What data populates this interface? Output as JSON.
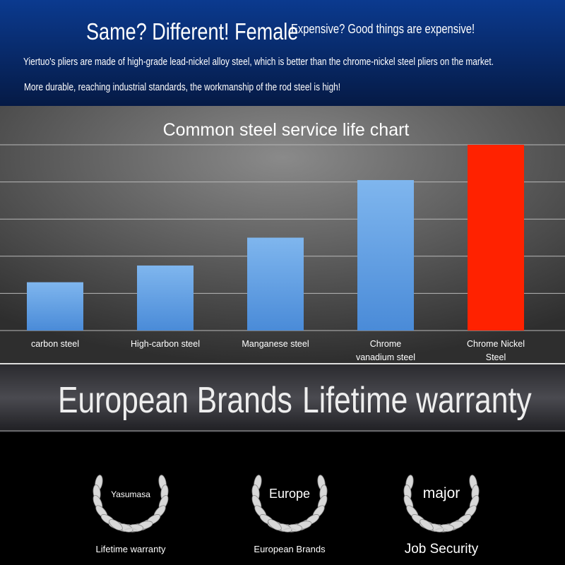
{
  "header": {
    "title": "Same? Different! Female",
    "tagline": "Expensive? Good things are expensive!",
    "lines": [
      "Yiertuo's pliers are made of high-grade lead-nickel alloy steel, which is better than the chrome-nickel steel pliers on the market.",
      "More durable, reaching industrial standards, the workmanship of the rod steel is high!"
    ]
  },
  "chart_data": {
    "type": "bar",
    "title": "Common steel service life chart",
    "categories": [
      "carbon steel",
      "High-carbon steel",
      "Manganese steel",
      "Chrome vanadium steel",
      "Chrome Nickel Steel"
    ],
    "values": [
      1.3,
      1.75,
      2.5,
      4.05,
      5
    ],
    "colors": [
      "#5f9ee6",
      "#5f9ee6",
      "#5f9ee6",
      "#5f9ee6",
      "#ff2200"
    ],
    "ylim": [
      0,
      5
    ],
    "yticks": [
      0,
      1,
      2,
      3,
      4,
      5
    ],
    "grid": true
  },
  "banner": [
    "European Brands",
    "Lifetime warranty"
  ],
  "badges": [
    {
      "emblem": "Yasumasa",
      "caption": "Lifetime warranty"
    },
    {
      "emblem": "Europe",
      "caption": "European Brands"
    },
    {
      "emblem": "major",
      "caption": "Job Security"
    }
  ]
}
